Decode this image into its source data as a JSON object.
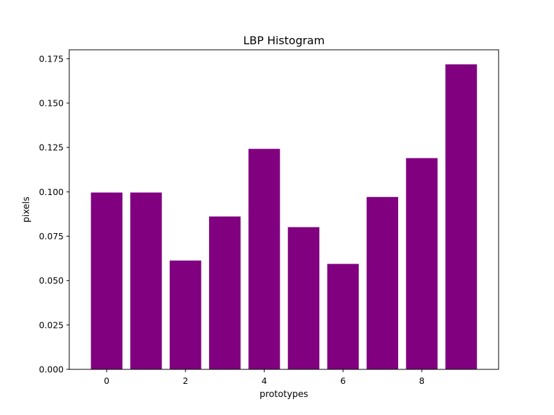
{
  "chart_data": {
    "type": "bar",
    "title": "LBP Histogram",
    "xlabel": "prototypes",
    "ylabel": "pixels",
    "x": [
      0,
      1,
      2,
      3,
      4,
      5,
      6,
      7,
      8,
      9
    ],
    "values": [
      0.0996,
      0.0996,
      0.0613,
      0.0861,
      0.1242,
      0.0801,
      0.0594,
      0.0971,
      0.119,
      0.1718
    ],
    "xlim": [
      -0.95,
      9.95
    ],
    "ylim": [
      0,
      0.18
    ],
    "xticks": [
      0,
      2,
      4,
      6,
      8
    ],
    "xtick_labels": [
      "0",
      "2",
      "4",
      "6",
      "8"
    ],
    "yticks": [
      0,
      0.025,
      0.05,
      0.075,
      0.1,
      0.125,
      0.15,
      0.175
    ],
    "ytick_labels": [
      "0.000",
      "0.025",
      "0.050",
      "0.075",
      "0.100",
      "0.125",
      "0.150",
      "0.175"
    ],
    "bar_color": "#800080",
    "grid": false,
    "legend": "none"
  }
}
